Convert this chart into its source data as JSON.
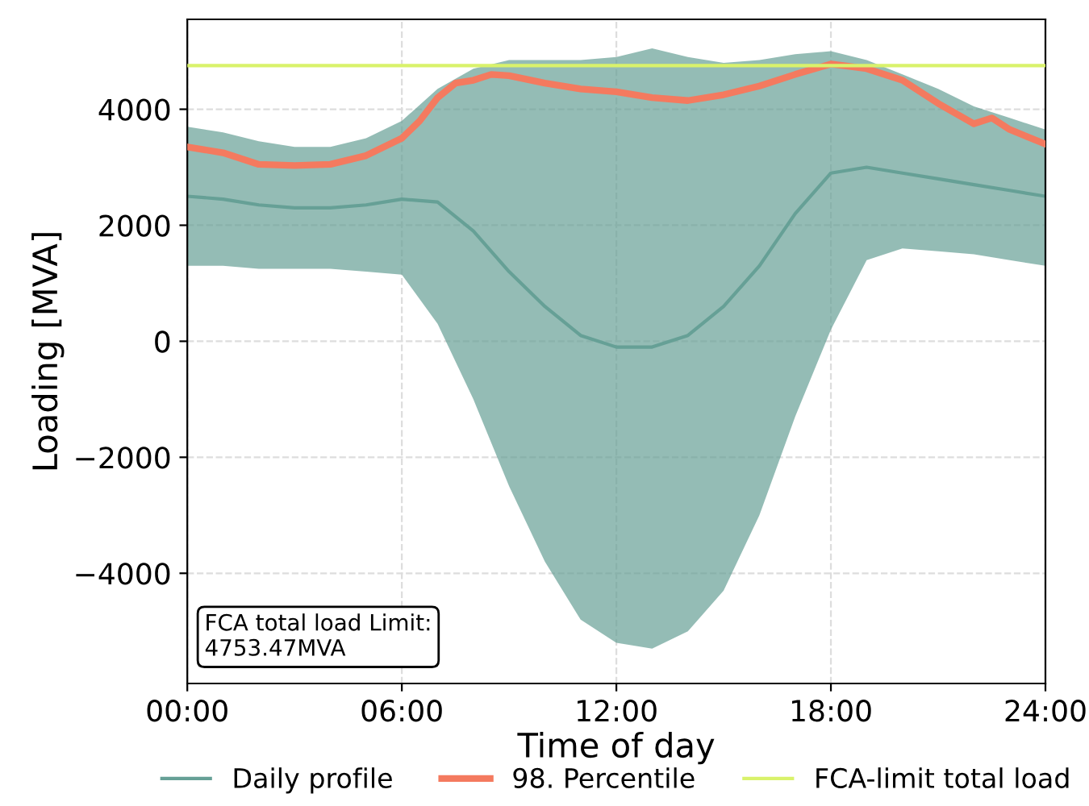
{
  "chart_data": {
    "type": "line",
    "xlabel": "Time of day",
    "ylabel": "Loading [MVA]",
    "xlim": [
      0,
      24
    ],
    "xticks": [
      {
        "value": 0,
        "label": "00:00"
      },
      {
        "value": 6,
        "label": "06:00"
      },
      {
        "value": 12,
        "label": "12:00"
      },
      {
        "value": 18,
        "label": "18:00"
      },
      {
        "value": 24,
        "label": "24:00"
      }
    ],
    "ylim": [
      -5900,
      5550
    ],
    "yticks": [
      {
        "value": -4000,
        "label": "−4000"
      },
      {
        "value": -2000,
        "label": "−2000"
      },
      0,
      2000,
      4000
    ],
    "grid": true,
    "legend": "bottom",
    "line_style": "solid",
    "marker": "none",
    "series": [
      {
        "name": "Daily profile",
        "color": "#66a096",
        "x": [
          0,
          1,
          2,
          3,
          4,
          5,
          6,
          7,
          8,
          9,
          10,
          11,
          12,
          13,
          14,
          15,
          16,
          17,
          18,
          19,
          20,
          21,
          22,
          23,
          24
        ],
        "values": [
          2500,
          2450,
          2350,
          2300,
          2300,
          2350,
          2450,
          2400,
          1900,
          1200,
          600,
          100,
          -100,
          -100,
          100,
          600,
          1300,
          2200,
          2900,
          3000,
          2900,
          2800,
          2700,
          2600,
          2500
        ],
        "upper": [
          3700,
          3600,
          3450,
          3350,
          3350,
          3500,
          3800,
          4350,
          4700,
          4850,
          4850,
          4850,
          4900,
          5050,
          4900,
          4800,
          4850,
          4950,
          5000,
          4850,
          4600,
          4350,
          4050,
          3850,
          3650
        ],
        "lower": [
          1300,
          1300,
          1250,
          1250,
          1250,
          1200,
          1150,
          300,
          -1000,
          -2500,
          -3800,
          -4800,
          -5200,
          -5300,
          -5000,
          -4300,
          -3000,
          -1300,
          200,
          1400,
          1600,
          1550,
          1500,
          1400,
          1300
        ]
      },
      {
        "name": "98. Percentile",
        "color": "#f47a5f",
        "x": [
          0,
          1,
          2,
          3,
          4,
          5,
          6,
          6.5,
          7,
          7.5,
          8,
          8.5,
          9,
          10,
          11,
          12,
          13,
          14,
          15,
          16,
          17,
          18,
          19,
          20,
          21,
          22,
          22.5,
          23,
          24
        ],
        "values": [
          3350,
          3250,
          3050,
          3030,
          3050,
          3200,
          3500,
          3800,
          4200,
          4450,
          4500,
          4600,
          4580,
          4450,
          4350,
          4300,
          4200,
          4150,
          4250,
          4400,
          4600,
          4780,
          4700,
          4500,
          4100,
          3750,
          3850,
          3650,
          3400
        ]
      }
    ],
    "ref_lines": [
      {
        "axis": "y",
        "value": 4753.47,
        "label": "FCA-limit total load",
        "color": "#d9f26b"
      }
    ],
    "annotations": [
      "FCA total load Limit:\n4753.47MVA"
    ]
  }
}
